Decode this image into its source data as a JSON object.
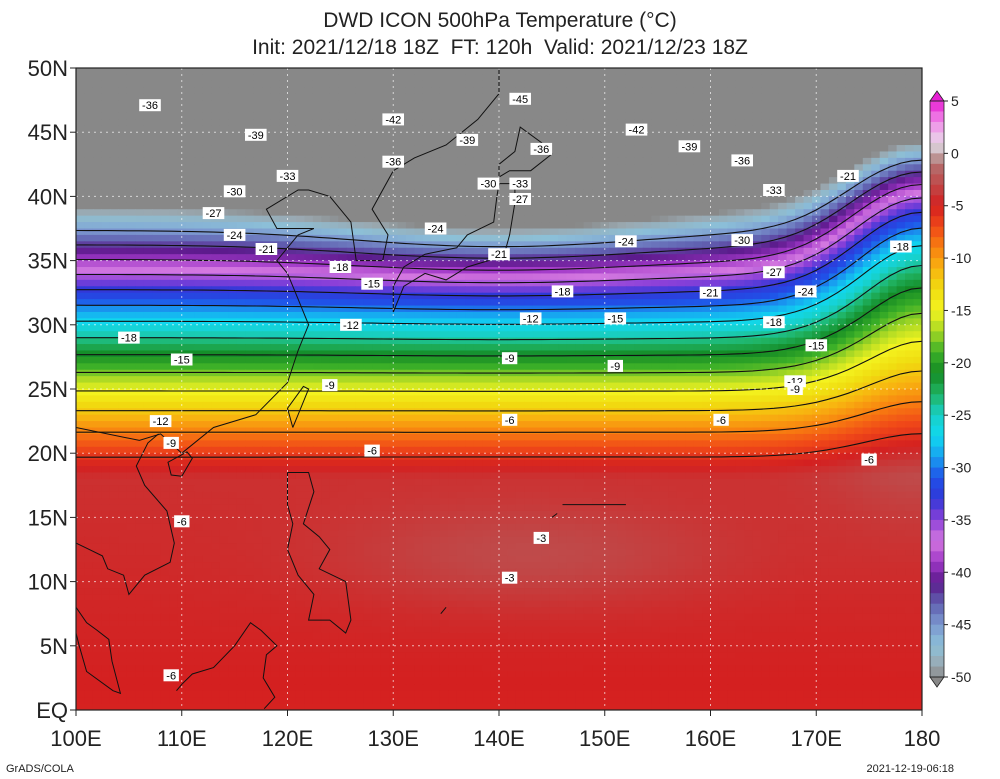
{
  "title_line1": "DWD ICON 500hPa Temperature (°C)",
  "title_line2": "Init: 2021/12/18 18Z  FT: 120h  Valid: 2021/12/23 18Z",
  "footer_left": "GrADS/COLA",
  "footer_right": "2021-12-19-06:18",
  "chart_data": {
    "type": "heatmap",
    "title": "DWD ICON 500hPa Temperature (°C)",
    "lon_range": [
      100,
      180
    ],
    "lat_range": [
      0,
      50
    ],
    "x_ticks": [
      "100E",
      "110E",
      "120E",
      "130E",
      "140E",
      "150E",
      "160E",
      "170E",
      "180"
    ],
    "y_ticks": [
      "EQ",
      "5N",
      "10N",
      "15N",
      "20N",
      "25N",
      "30N",
      "35N",
      "40N",
      "45N",
      "50N"
    ],
    "colorbar": {
      "labels": [
        "5",
        "0",
        "-5",
        "-10",
        "-15",
        "-20",
        "-25",
        "-30",
        "-35",
        "-40",
        "-45",
        "-50"
      ],
      "levels": [
        5,
        4,
        3,
        2,
        1,
        0,
        -1,
        -2,
        -3,
        -4,
        -5,
        -6,
        -7,
        -8,
        -9,
        -10,
        -11,
        -12,
        -13,
        -14,
        -15,
        -16,
        -17,
        -18,
        -19,
        -20,
        -21,
        -22,
        -23,
        -24,
        -25,
        -26,
        -27,
        -28,
        -29,
        -30,
        -31,
        -32,
        -33,
        -34,
        -35,
        -36,
        -37,
        -38,
        -39,
        -40,
        -41,
        -42,
        -43,
        -44,
        -45,
        -46,
        -47,
        -48,
        -49,
        -50
      ]
    },
    "contour_labels": [
      {
        "text": "-45",
        "lon": 142,
        "lat": 47.6
      },
      {
        "text": "-42",
        "lon": 130,
        "lat": 46.0
      },
      {
        "text": "-42",
        "lon": 153,
        "lat": 45.2
      },
      {
        "text": "-39",
        "lon": 117,
        "lat": 44.8
      },
      {
        "text": "-39",
        "lon": 137,
        "lat": 44.4
      },
      {
        "text": "-39",
        "lon": 158,
        "lat": 43.9
      },
      {
        "text": "-36",
        "lon": 107,
        "lat": 47.1
      },
      {
        "text": "-36",
        "lon": 144,
        "lat": 43.7
      },
      {
        "text": "-36",
        "lon": 130,
        "lat": 42.7
      },
      {
        "text": "-36",
        "lon": 163,
        "lat": 42.8
      },
      {
        "text": "-33",
        "lon": 120,
        "lat": 41.6
      },
      {
        "text": "-33",
        "lon": 142,
        "lat": 41.0
      },
      {
        "text": "-33",
        "lon": 166,
        "lat": 40.5
      },
      {
        "text": "-30",
        "lon": 115,
        "lat": 40.4
      },
      {
        "text": "-30",
        "lon": 139,
        "lat": 41.0
      },
      {
        "text": "-30",
        "lon": 163,
        "lat": 36.6
      },
      {
        "text": "-27",
        "lon": 113,
        "lat": 38.7
      },
      {
        "text": "-27",
        "lon": 142,
        "lat": 39.8
      },
      {
        "text": "-27",
        "lon": 166,
        "lat": 34.1
      },
      {
        "text": "-24",
        "lon": 115,
        "lat": 37.0
      },
      {
        "text": "-24",
        "lon": 134,
        "lat": 37.5
      },
      {
        "text": "-24",
        "lon": 152,
        "lat": 36.5
      },
      {
        "text": "-24",
        "lon": 169,
        "lat": 32.6
      },
      {
        "text": "-21",
        "lon": 118,
        "lat": 35.9
      },
      {
        "text": "-21",
        "lon": 140,
        "lat": 35.5
      },
      {
        "text": "-21",
        "lon": 160,
        "lat": 32.5
      },
      {
        "text": "-21",
        "lon": 173,
        "lat": 41.6
      },
      {
        "text": "-18",
        "lon": 125,
        "lat": 34.5
      },
      {
        "text": "-18",
        "lon": 146,
        "lat": 32.6
      },
      {
        "text": "-18",
        "lon": 166,
        "lat": 30.2
      },
      {
        "text": "-18",
        "lon": 105,
        "lat": 29.0
      },
      {
        "text": "-18",
        "lon": 178,
        "lat": 36.1
      },
      {
        "text": "-15",
        "lon": 128,
        "lat": 33.2
      },
      {
        "text": "-15",
        "lon": 151,
        "lat": 30.5
      },
      {
        "text": "-15",
        "lon": 110,
        "lat": 27.3
      },
      {
        "text": "-15",
        "lon": 170,
        "lat": 28.4
      },
      {
        "text": "-12",
        "lon": 126,
        "lat": 30.0
      },
      {
        "text": "-12",
        "lon": 143,
        "lat": 30.5
      },
      {
        "text": "-12",
        "lon": 108,
        "lat": 22.5
      },
      {
        "text": "-12",
        "lon": 168,
        "lat": 25.6
      },
      {
        "text": "-9",
        "lon": 124,
        "lat": 25.3
      },
      {
        "text": "-9",
        "lon": 141,
        "lat": 27.4
      },
      {
        "text": "-9",
        "lon": 151,
        "lat": 26.8
      },
      {
        "text": "-9",
        "lon": 168,
        "lat": 25.0
      },
      {
        "text": "-9",
        "lon": 109,
        "lat": 20.8
      },
      {
        "text": "-6",
        "lon": 128,
        "lat": 20.2
      },
      {
        "text": "-6",
        "lon": 141,
        "lat": 22.6
      },
      {
        "text": "-6",
        "lon": 161,
        "lat": 22.6
      },
      {
        "text": "-6",
        "lon": 110,
        "lat": 14.7
      },
      {
        "text": "-6",
        "lon": 175,
        "lat": 19.5
      },
      {
        "text": "-6",
        "lon": 109,
        "lat": 2.7
      },
      {
        "text": "-3",
        "lon": 144,
        "lat": 13.4
      },
      {
        "text": "-3",
        "lon": 141,
        "lat": 10.3
      }
    ]
  }
}
